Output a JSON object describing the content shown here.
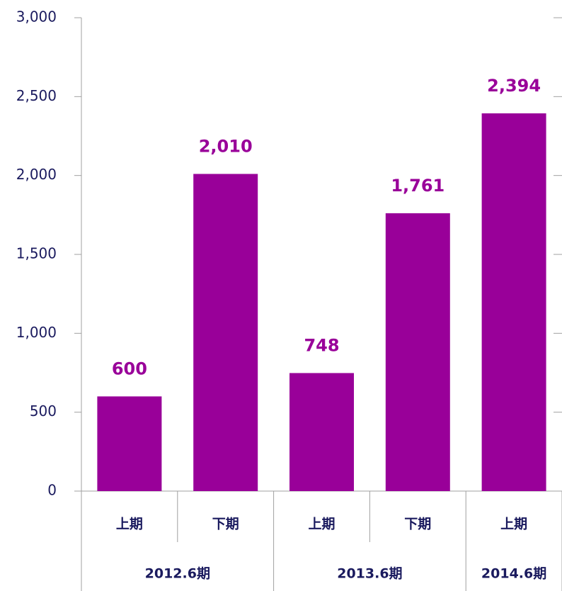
{
  "chart_data": {
    "type": "bar",
    "color": "#990099",
    "groups": [
      {
        "label": "2012.6期",
        "categories": [
          "上期",
          "下期"
        ],
        "values": [
          600,
          2010
        ],
        "value_labels": [
          "600",
          "2,010"
        ]
      },
      {
        "label": "2013.6期",
        "categories": [
          "上期",
          "下期"
        ],
        "values": [
          748,
          1761
        ],
        "value_labels": [
          "748",
          "1,761"
        ]
      },
      {
        "label": "2014.6期",
        "categories": [
          "上期"
        ],
        "values": [
          2394
        ],
        "value_labels": [
          "2,394"
        ]
      }
    ],
    "ylim": [
      0,
      3000
    ],
    "yticks": [
      0,
      500,
      {
        "value": 1000,
        "label": "1,000"
      },
      {
        "value": 1500,
        "label": "1,500"
      },
      {
        "value": 2000,
        "label": "2,000"
      },
      {
        "value": 2500,
        "label": "2,500"
      },
      {
        "value": 3000,
        "label": "3,000"
      }
    ]
  }
}
